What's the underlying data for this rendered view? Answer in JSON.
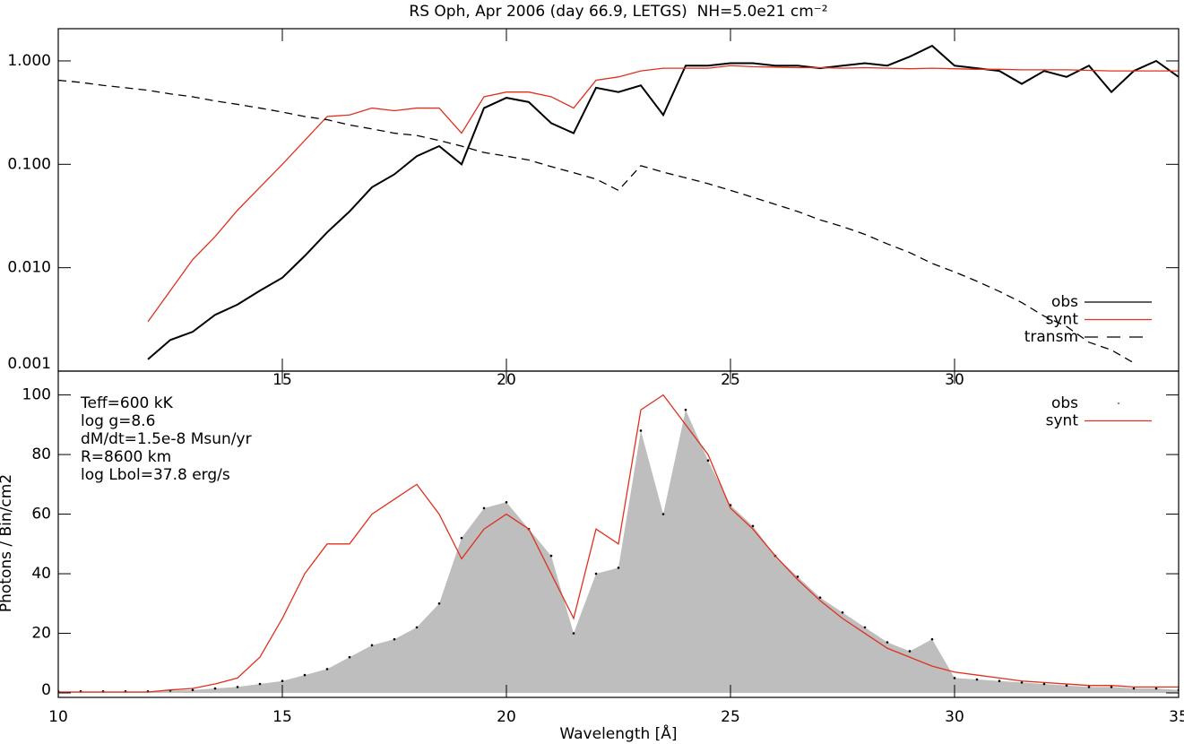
{
  "chart_data": [
    {
      "type": "line",
      "title": "RS Oph, Apr 2006 (day 66.9, LETGS)  NH=5.0e21 cm⁻²",
      "log_y": true,
      "xlim": [
        10,
        35
      ],
      "ylim": [
        0.001,
        2.05
      ],
      "xticks": [
        15,
        20,
        25,
        30
      ],
      "yticks": [
        {
          "value": 0.001,
          "label": "0.001"
        },
        {
          "value": 0.01,
          "label": "0.010"
        },
        {
          "value": 0.1,
          "label": "0.100"
        },
        {
          "value": 1,
          "label": "1.000"
        }
      ],
      "legend": "lower right",
      "x": [
        10,
        10.5,
        11,
        11.5,
        12,
        12.5,
        13,
        13.5,
        14,
        14.5,
        15,
        15.5,
        16,
        16.5,
        17,
        17.5,
        18,
        18.5,
        19,
        19.5,
        20,
        20.5,
        21,
        21.5,
        22,
        22.5,
        23,
        23.5,
        24,
        24.5,
        25,
        25.5,
        26,
        26.5,
        27,
        27.5,
        28,
        28.5,
        29,
        29.5,
        30,
        30.5,
        31,
        31.5,
        32,
        32.5,
        33,
        33.5,
        34,
        34.5,
        35
      ],
      "series": [
        {
          "name": "obs",
          "color": "#000000",
          "values": [
            null,
            null,
            null,
            null,
            0.0013,
            0.002,
            0.0024,
            0.0035,
            0.0044,
            0.006,
            0.008,
            0.013,
            0.022,
            0.035,
            0.06,
            0.08,
            0.12,
            0.15,
            0.1,
            0.35,
            0.44,
            0.4,
            0.25,
            0.2,
            0.55,
            0.5,
            0.58,
            0.3,
            0.9,
            0.9,
            0.95,
            0.95,
            0.9,
            0.9,
            0.85,
            0.9,
            0.95,
            0.9,
            1.1,
            1.4,
            0.9,
            0.85,
            0.8,
            0.6,
            0.8,
            0.7,
            0.9,
            0.5,
            0.8,
            1.0,
            0.7
          ]
        },
        {
          "name": "synt",
          "color": "#e0301e",
          "values": [
            null,
            null,
            null,
            null,
            0.003,
            0.006,
            0.012,
            0.02,
            0.036,
            0.06,
            0.1,
            0.17,
            0.29,
            0.3,
            0.35,
            0.33,
            0.35,
            0.35,
            0.2,
            0.45,
            0.5,
            0.5,
            0.45,
            0.35,
            0.65,
            0.7,
            0.8,
            0.85,
            0.85,
            0.85,
            0.9,
            0.88,
            0.87,
            0.86,
            0.86,
            0.85,
            0.86,
            0.85,
            0.84,
            0.85,
            0.84,
            0.83,
            0.83,
            0.82,
            0.82,
            0.82,
            0.81,
            0.8,
            0.8,
            0.8,
            0.8
          ]
        },
        {
          "name": "transm",
          "color": "#000000",
          "dashed": true,
          "values": [
            0.65,
            0.62,
            0.58,
            0.55,
            0.52,
            0.48,
            0.45,
            0.41,
            0.38,
            0.35,
            0.32,
            0.29,
            0.27,
            0.24,
            0.22,
            0.2,
            0.19,
            0.17,
            0.15,
            0.13,
            0.12,
            0.11,
            0.095,
            0.083,
            0.072,
            0.056,
            0.097,
            0.084,
            0.074,
            0.065,
            0.056,
            0.048,
            0.041,
            0.035,
            0.029,
            0.025,
            0.021,
            0.017,
            0.014,
            0.011,
            0.0091,
            0.0074,
            0.0059,
            0.0046,
            0.0034,
            0.0027,
            0.0019,
            0.0016,
            0.0012,
            null,
            null
          ]
        }
      ]
    },
    {
      "type": "line",
      "xlabel": "Wavelength [Å]",
      "ylabel": "Photons / Bin/cm2",
      "xlim": [
        10,
        35
      ],
      "ylim": [
        -1.5,
        108
      ],
      "xticks": [
        10,
        15,
        20,
        25,
        30,
        35
      ],
      "yticks": [
        0,
        20,
        40,
        60,
        80,
        100
      ],
      "legend": "upper right",
      "annotations": [
        "Teff=600 kK",
        "log g=8.6",
        "dM/dt=1.5e-8 Msun/yr",
        "R=8600 km",
        "log Lbol=37.8 erg/s"
      ],
      "x": [
        10,
        10.5,
        11,
        11.5,
        12,
        12.5,
        13,
        13.5,
        14,
        14.5,
        15,
        15.5,
        16,
        16.5,
        17,
        17.5,
        18,
        18.5,
        19,
        19.5,
        20,
        20.5,
        21,
        21.5,
        22,
        22.5,
        23,
        23.5,
        24,
        24.5,
        25,
        25.5,
        26,
        26.5,
        27,
        27.5,
        28,
        28.5,
        29,
        29.5,
        30,
        30.5,
        31,
        31.5,
        32,
        32.5,
        33,
        33.5,
        34,
        34.5,
        35
      ],
      "series": [
        {
          "name": "obs",
          "color": "#bebebe",
          "fill": true,
          "values": [
            0.5,
            0.5,
            0.5,
            0.5,
            0.5,
            0.8,
            1,
            1.5,
            2,
            3,
            4,
            6,
            8,
            12,
            16,
            18,
            22,
            30,
            52,
            62,
            64,
            55,
            46,
            20,
            40,
            42,
            88,
            60,
            95,
            78,
            63,
            56,
            46,
            39,
            32,
            27,
            22,
            17,
            14,
            18,
            5,
            4.5,
            4,
            3.5,
            3,
            2.5,
            2,
            2,
            1.5,
            1.5,
            1
          ]
        },
        {
          "name": "synt",
          "color": "#e0301e",
          "values": [
            0.3,
            0.3,
            0.3,
            0.3,
            0.3,
            1,
            1.5,
            3,
            5,
            12,
            25,
            40,
            50,
            50,
            60,
            65,
            70,
            60,
            45,
            55,
            60,
            55,
            40,
            25,
            55,
            50,
            95,
            100,
            90,
            80,
            62,
            55,
            46,
            38,
            31,
            25,
            20,
            15,
            12,
            9,
            7,
            6,
            5,
            4,
            3.5,
            3,
            2.5,
            2.5,
            2,
            2,
            2
          ]
        }
      ]
    }
  ]
}
